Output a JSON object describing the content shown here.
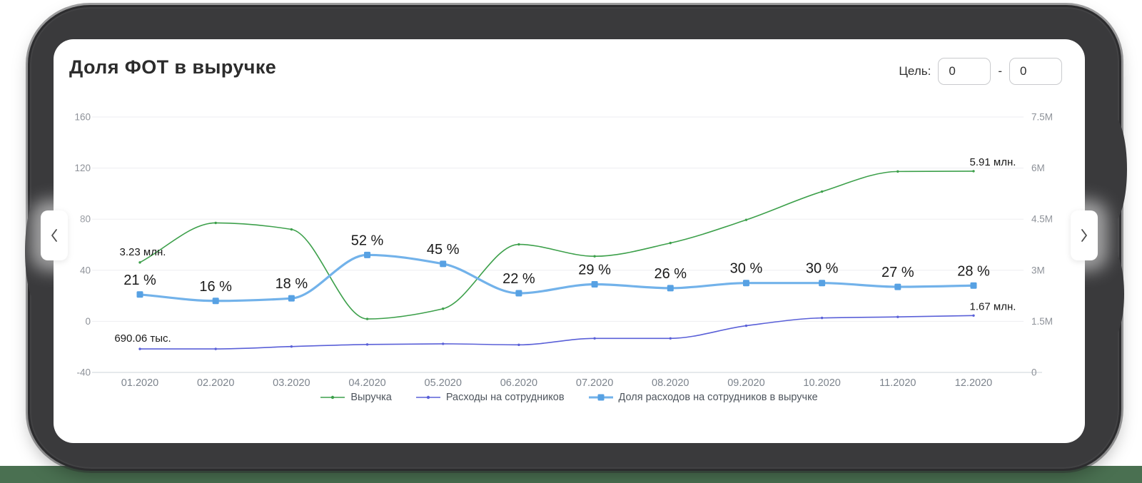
{
  "card": {
    "title": "Доля ФОТ в выручке"
  },
  "target": {
    "label": "Цель:",
    "from": "0",
    "separator": "-",
    "to": "0"
  },
  "chart_data": {
    "type": "line",
    "categories": [
      "01.2020",
      "02.2020",
      "03.2020",
      "04.2020",
      "05.2020",
      "06.2020",
      "07.2020",
      "08.2020",
      "09.2020",
      "10.2020",
      "11.2020",
      "12.2020"
    ],
    "left_axis": {
      "ticks": [
        "160",
        "120",
        "80",
        "40",
        "0",
        "-40"
      ],
      "range": [
        -40,
        160
      ]
    },
    "right_axis": {
      "ticks": [
        "7.5M",
        "6M",
        "4.5M",
        "3M",
        "1.5M",
        "0"
      ],
      "range_millions": [
        0,
        7.5
      ]
    },
    "grid": true,
    "legend_position": "bottom",
    "series": [
      {
        "name": "Выручка",
        "color": "#3da04b",
        "axis": "right",
        "values_millions": [
          3.23,
          4.39,
          4.2,
          1.57,
          1.87,
          3.76,
          3.41,
          3.8,
          4.48,
          5.31,
          5.9,
          5.91
        ],
        "first_point_label": "3.23 млн.",
        "last_point_label": "5.91 млн."
      },
      {
        "name": "Расходы на сотрудников",
        "color": "#5a60d8",
        "axis": "right",
        "values_millions": [
          0.69,
          0.69,
          0.76,
          0.82,
          0.84,
          0.81,
          1.0,
          1.0,
          1.37,
          1.6,
          1.63,
          1.67
        ],
        "first_point_label": "690.06 тыс.",
        "last_point_label": "1.67 млн."
      },
      {
        "name": "Доля расходов на сотрудников в выручке",
        "color": "#72b2ea",
        "marker_color": "#57a1e3",
        "axis": "left",
        "values_percent": [
          21,
          16,
          18,
          52,
          45,
          22,
          29,
          26,
          30,
          30,
          27,
          28
        ],
        "point_labels": [
          "21 %",
          "16 %",
          "18 %",
          "52 %",
          "45 %",
          "22 %",
          "29 %",
          "26 %",
          "30 %",
          "30 %",
          "27 %",
          "28 %"
        ]
      }
    ]
  }
}
